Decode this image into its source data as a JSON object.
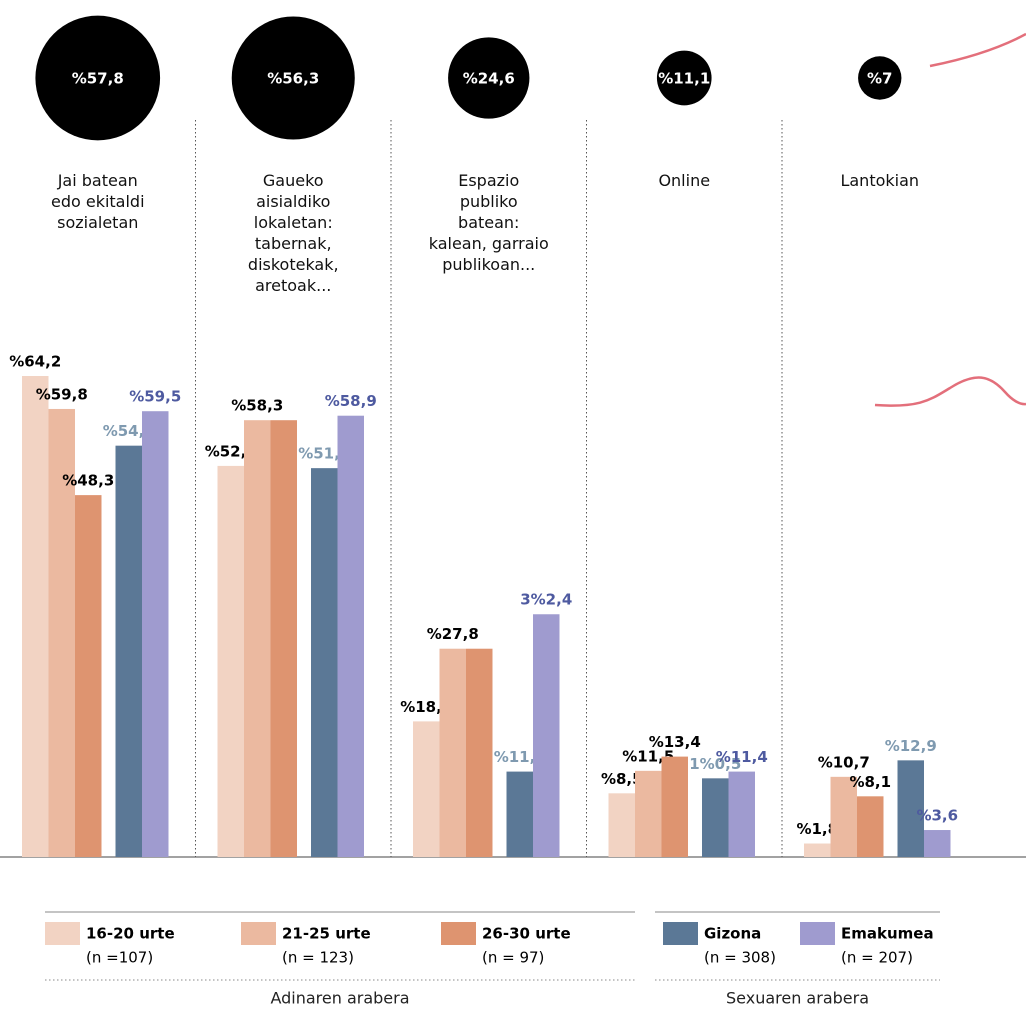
{
  "chart_data": {
    "type": "bar",
    "categories": [
      "Jai batean\nedo ekitaldi\nsozialetan",
      "Gaueko\naisialdiko\nlokaletan:\ntabernak,\ndiskotekak,\naretoak...",
      "Espazio\npubliko\nbatean:\nkalean, garraio\npublikoan...",
      "Online",
      "Lantokian"
    ],
    "bubbles": {
      "values": [
        57.8,
        56.3,
        24.6,
        11.1,
        7
      ],
      "value_labels": [
        "%57,8",
        "%56,3",
        "%24,6",
        "%11,1",
        "%7"
      ],
      "color": "#000000"
    },
    "ylim": [
      0,
      65
    ],
    "series": [
      {
        "name": "16-20 urte",
        "sample": "(n =107)",
        "group": 0,
        "color": "#f2d3c3",
        "label_color": "#000000",
        "values": [
          64.2,
          52.2,
          18.1,
          8.5,
          1.8
        ],
        "value_labels": [
          "%64,2",
          "%52,2",
          "%18,1",
          "%8,5",
          "%1,8"
        ]
      },
      {
        "name": "21-25 urte",
        "sample": "(n = 123)",
        "group": 0,
        "color": "#ebb9a0",
        "label_color": "#000000",
        "values": [
          59.8,
          58.3,
          27.8,
          11.5,
          10.7
        ],
        "value_labels": [
          "%59,8",
          "%58,3",
          "%27,8",
          "%11,5",
          "%10,7"
        ]
      },
      {
        "name": "26-30 urte",
        "sample": "(n = 97)",
        "group": 0,
        "color": "#de9470",
        "label_color": "#000000",
        "values": [
          48.3,
          58.3,
          27.8,
          13.4,
          8.1
        ],
        "value_labels": [
          "%48,3",
          "",
          "",
          "%13,4",
          "%8,1"
        ]
      },
      {
        "name": "Gizona",
        "sample": "(n = 308)",
        "group": 1,
        "color": "#5b7896",
        "label_color": "#7f9ab0",
        "values": [
          54.9,
          51.9,
          11.4,
          10.5,
          12.9
        ],
        "value_labels": [
          "%54,9",
          "%51,9",
          "%11,4",
          "1%0,5",
          "%12,9"
        ]
      },
      {
        "name": "Emakumea",
        "sample": "(n = 207)",
        "group": 1,
        "color": "#9f9bcf",
        "label_color": "#4e5aa0",
        "values": [
          59.5,
          58.9,
          32.4,
          11.4,
          3.6
        ],
        "value_labels": [
          "%59,5",
          "%58,9",
          "3%2,4",
          "%11,4",
          "%3,6"
        ]
      }
    ],
    "legend_groups": [
      "Adinaren arabera",
      "Sexuaren arabera"
    ]
  }
}
